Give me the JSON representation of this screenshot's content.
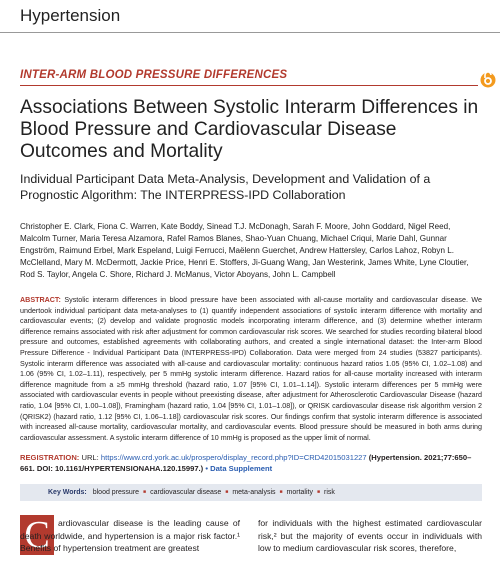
{
  "header": {
    "journal": "Hypertension"
  },
  "article": {
    "section": "INTER-ARM BLOOD PRESSURE DIFFERENCES",
    "title": "Associations Between Systolic Interarm Differences in Blood Pressure and Cardiovascular Disease Outcomes and Mortality",
    "subtitle": "Individual Participant Data Meta-Analysis, Development and Validation of a Prognostic Algorithm: The INTERPRESS-IPD Collaboration",
    "authors": "Christopher E. Clark, Fiona C. Warren, Kate Boddy, Sinead T.J. McDonagh, Sarah F. Moore, John Goddard, Nigel Reed, Malcolm Turner, Maria Teresa Alzamora, Rafel Ramos Blanes, Shao-Yuan Chuang, Michael Criqui, Marie Dahl, Gunnar Engström, Raimund Erbel, Mark Espeland, Luigi Ferrucci, Maëlenn Guerchet, Andrew Hattersley, Carlos Lahoz, Robyn L. McClelland, Mary M. McDermott, Jackie Price, Henri E. Stoffers, Ji-Guang Wang, Jan Westerink, James White, Lyne Cloutier, Rod S. Taylor, Angela C. Shore, Richard J. McManus, Victor Aboyans, John L. Campbell"
  },
  "abstract": {
    "label": "ABSTRACT:",
    "text": "Systolic interarm differences in blood pressure have been associated with all-cause mortality and cardiovascular disease. We undertook individual participant data meta-analyses to (1) quantify independent associations of systolic interarm difference with mortality and cardiovascular events; (2) develop and validate prognostic models incorporating interarm difference, and (3) determine whether interarm difference remains associated with risk after adjustment for common cardiovascular risk scores. We searched for studies recording bilateral blood pressure and outcomes, established agreements with collaborating authors, and created a single international dataset: the Inter-arm Blood Pressure Difference - Individual Participant Data (INTERPRESS-IPD) Collaboration. Data were merged from 24 studies (53827 participants). Systolic interarm difference was associated with all-cause and cardiovascular mortality: continuous hazard ratios 1.05 (95% CI, 1.02–1.08) and 1.06 (95% CI, 1.02–1.11), respectively, per 5 mmHg systolic interarm difference. Hazard ratios for all-cause mortality increased with interarm difference magnitude from a ≥5 mmHg threshold (hazard ratio, 1.07 [95% CI, 1.01–1.14]). Systolic interarm differences per 5 mmHg were associated with cardiovascular events in people without preexisting disease, after adjustment for Atherosclerotic Cardiovascular Disease (hazard ratio, 1.04 [95% CI, 1.00–1.08]), Framingham (hazard ratio, 1.04 [95% CI, 1.01–1.08]), or QRISK cardiovascular disease risk algorithm version 2 (QRISK2) (hazard ratio, 1.12 [95% CI, 1.06–1.18]) cardiovascular risk scores. Our findings confirm that systolic interarm difference is associated with increased all-cause mortality, cardiovascular mortality, and cardiovascular events. Blood pressure should be measured in both arms during cardiovascular assessment. A systolic interarm difference of 10 mmHg is proposed as the upper limit of normal."
  },
  "registration": {
    "label": "REGISTRATION:",
    "url_label": "URL:",
    "url": "https://www.crd.york.ac.uk/prospero/display_record.php?ID=CRD42015031227",
    "citation": "(Hypertension. 2021;77:650–661. DOI: 10.1161/HYPERTENSIONAHA.120.15997.)",
    "supplement": "Data Supplement"
  },
  "keywords": {
    "label": "Key Words:",
    "items": [
      "blood pressure",
      "cardiovascular disease",
      "meta-analysis",
      "mortality",
      "risk"
    ]
  },
  "body": {
    "drop_cap": "C",
    "left": "ardiovascular disease is the leading cause of death worldwide, and hypertension is a major risk factor.¹ Benefits of hypertension treatment are greatest",
    "right": "for individuals with the highest estimated cardiovascular risk,² but the majority of events occur in individuals with low to medium cardiovascular risk scores, therefore,"
  }
}
